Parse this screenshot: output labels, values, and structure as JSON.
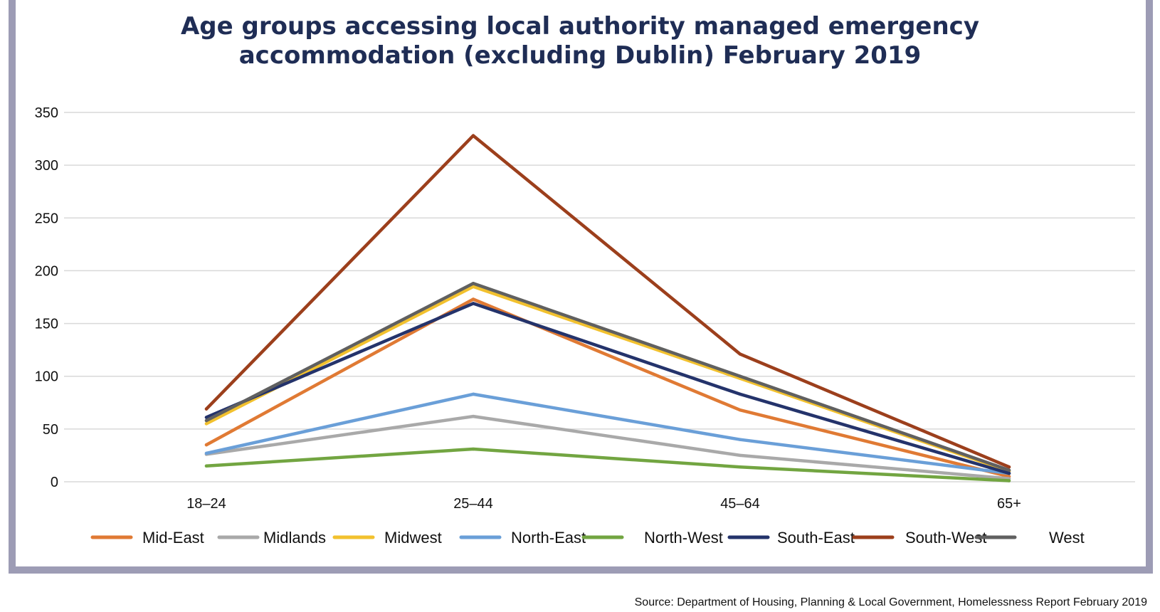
{
  "chart_data": {
    "type": "line",
    "title": "Age groups accessing local authority managed emergency accommodation (excluding Dublin) February 2019",
    "title_lines": [
      "Age groups accessing local authority managed emergency",
      "accommodation (excluding Dublin) February 2019"
    ],
    "categories": [
      "18–24",
      "25–44",
      "45–64",
      "65+"
    ],
    "ylim": [
      0,
      350
    ],
    "yticks": [
      0,
      50,
      100,
      150,
      200,
      250,
      300,
      350
    ],
    "grid": true,
    "legend_position": "bottom",
    "series": [
      {
        "name": "Mid-East",
        "color": "#e07a34",
        "values": [
          35,
          173,
          68,
          5
        ]
      },
      {
        "name": "Midlands",
        "color": "#a9a9a9",
        "values": [
          26,
          62,
          25,
          3
        ]
      },
      {
        "name": "Midwest",
        "color": "#f2c12e",
        "values": [
          55,
          185,
          98,
          10
        ]
      },
      {
        "name": "North-East",
        "color": "#6a9fd8",
        "values": [
          27,
          83,
          40,
          8
        ]
      },
      {
        "name": "North-West",
        "color": "#72a541",
        "values": [
          15,
          31,
          14,
          1
        ]
      },
      {
        "name": "South-East",
        "color": "#24336b",
        "values": [
          61,
          169,
          83,
          8
        ]
      },
      {
        "name": "South-West",
        "color": "#9c3f1c",
        "values": [
          69,
          328,
          121,
          14
        ]
      },
      {
        "name": "West",
        "color": "#606060",
        "values": [
          58,
          188,
          100,
          11
        ]
      }
    ]
  },
  "source": "Source: Department of Housing, Planning & Local Government, Homelessness Report February 2019"
}
